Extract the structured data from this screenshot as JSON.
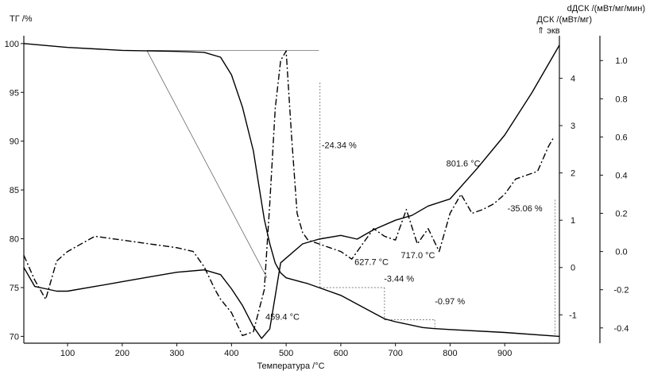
{
  "chart_data": {
    "type": "line",
    "title": "",
    "xlabel": "Температура /°C",
    "ylabel_left": "ТГ /%",
    "ylabel_right_inner": "ДСК /(мВт/мг)",
    "ylabel_right_outer": "dДСК /(мВт/мг/мин)",
    "exo_label": "⇑ экв",
    "xlim": [
      20,
      1000
    ],
    "ylim_tg": [
      69.3,
      100.8
    ],
    "ylim_dsc": [
      -1.6,
      4.9
    ],
    "ylim_ddsc": [
      -0.48,
      1.13
    ],
    "x_ticks": [
      100,
      200,
      300,
      400,
      500,
      600,
      700,
      800,
      900
    ],
    "tg_ticks": [
      70,
      75,
      80,
      85,
      90,
      95,
      100
    ],
    "dsc_ticks": [
      -1,
      0,
      1,
      2,
      3,
      4
    ],
    "ddsc_ticks": [
      -0.4,
      -0.2,
      0.0,
      0.2,
      0.4,
      0.6,
      0.8,
      1.0
    ],
    "dsc_tick_labels": [
      "-1",
      "0",
      "1",
      "2",
      "3",
      "4"
    ],
    "ddsc_tick_labels": [
      "-0.4",
      "-0.2",
      "0.0",
      "0.2",
      "0.4",
      "0.6",
      "0.8",
      "1.0"
    ],
    "series": [
      {
        "axis": "tg",
        "style": "solid",
        "x": [
          20,
          100,
          200,
          300,
          350,
          380,
          400,
          420,
          440,
          450,
          460,
          470,
          480,
          490,
          500,
          520,
          540,
          560,
          600,
          650,
          680,
          700,
          750,
          770,
          800,
          900,
          1000
        ],
        "y": [
          100,
          99.6,
          99.3,
          99.2,
          99.1,
          98.6,
          96.8,
          93.5,
          89,
          85.5,
          82,
          79.5,
          77.5,
          76.5,
          76,
          75.7,
          75.4,
          75,
          74.2,
          72.7,
          71.8,
          71.5,
          70.9,
          70.8,
          70.7,
          70.4,
          70.0
        ]
      },
      {
        "axis": "dsc",
        "style": "solid",
        "x": [
          20,
          40,
          60,
          80,
          100,
          150,
          200,
          250,
          300,
          350,
          380,
          400,
          420,
          440,
          455,
          470,
          480,
          490,
          500,
          530,
          560,
          600,
          630,
          660,
          700,
          730,
          760,
          800,
          850,
          900,
          950,
          1000
        ],
        "y": [
          0,
          -0.4,
          -0.45,
          -0.5,
          -0.5,
          -0.4,
          -0.3,
          -0.2,
          -0.1,
          -0.05,
          -0.15,
          -0.45,
          -0.8,
          -1.25,
          -1.5,
          -1.3,
          -0.6,
          0.1,
          0.2,
          0.5,
          0.6,
          0.68,
          0.6,
          0.8,
          1.0,
          1.1,
          1.3,
          1.45,
          2.1,
          2.8,
          3.7,
          4.7
        ]
      },
      {
        "axis": "ddsc",
        "style": "dashdot",
        "x": [
          20,
          40,
          60,
          80,
          100,
          150,
          200,
          250,
          300,
          330,
          350,
          370,
          380,
          400,
          420,
          440,
          460,
          470,
          480,
          490,
          500,
          510,
          520,
          530,
          540,
          560,
          580,
          600,
          620,
          640,
          660,
          680,
          700,
          720,
          740,
          760,
          780,
          800,
          820,
          840,
          860,
          880,
          900,
          920,
          940,
          960,
          980,
          990
        ],
        "y": [
          -0.02,
          -0.15,
          -0.25,
          -0.05,
          0.0,
          0.08,
          0.06,
          0.04,
          0.02,
          0.0,
          -0.08,
          -0.2,
          -0.25,
          -0.32,
          -0.44,
          -0.42,
          -0.2,
          0.25,
          0.75,
          1.0,
          1.05,
          0.6,
          0.2,
          0.1,
          0.06,
          0.04,
          0.02,
          0.0,
          -0.04,
          0.04,
          0.12,
          0.08,
          0.06,
          0.22,
          0.04,
          0.12,
          0.0,
          0.2,
          0.3,
          0.2,
          0.22,
          0.25,
          0.3,
          0.38,
          0.4,
          0.42,
          0.55,
          0.6
        ]
      }
    ],
    "annotations": [
      {
        "text": "-24.34 %",
        "x": 565,
        "y": 89.3
      },
      {
        "text": "801.6 °C",
        "x": 793,
        "y": 87.4
      },
      {
        "text": "627.7 °C",
        "x": 625,
        "y": 77.3
      },
      {
        "text": "717.0 °C",
        "x": 710,
        "y": 78.0
      },
      {
        "text": "-3.44 %",
        "x": 679,
        "y": 75.6
      },
      {
        "text": "-0.97 %",
        "x": 772,
        "y": 73.3
      },
      {
        "text": "459.4 °C",
        "x": 462,
        "y": 71.7
      },
      {
        "text": "-35.06 %",
        "x": 905,
        "y": 82.8
      }
    ]
  }
}
